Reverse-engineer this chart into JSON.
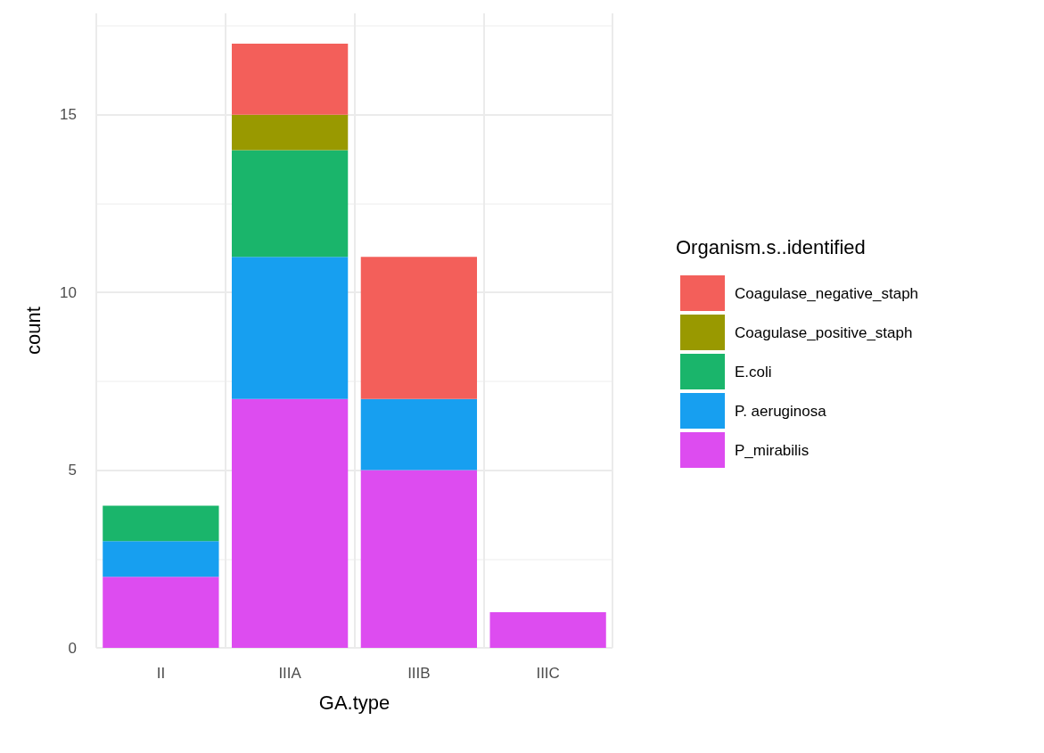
{
  "chart_data": {
    "type": "bar",
    "stacked": true,
    "xlabel": "GA.type",
    "ylabel": "count",
    "legend_title": "Organism.s..identified",
    "categories": [
      "II",
      "IIIA",
      "IIIB",
      "IIIC"
    ],
    "series": [
      {
        "name": "P_mirabilis",
        "color": "#dd4cf0",
        "values": [
          2,
          7,
          5,
          1
        ]
      },
      {
        "name": "P. aeruginosa",
        "color": "#179ff0",
        "values": [
          1,
          4,
          2,
          0
        ]
      },
      {
        "name": "E.coli",
        "color": "#1ab56b",
        "values": [
          1,
          3,
          0,
          0
        ]
      },
      {
        "name": "Coagulase_positive_staph",
        "color": "#999900",
        "values": [
          0,
          1,
          0,
          0
        ]
      },
      {
        "name": "Coagulase_negative_staph",
        "color": "#f35f5a",
        "values": [
          0,
          2,
          4,
          0
        ]
      }
    ],
    "ylim": [
      0,
      17.85
    ],
    "yticks": [
      0,
      5,
      10,
      15
    ],
    "grid": true,
    "legend": "right"
  }
}
